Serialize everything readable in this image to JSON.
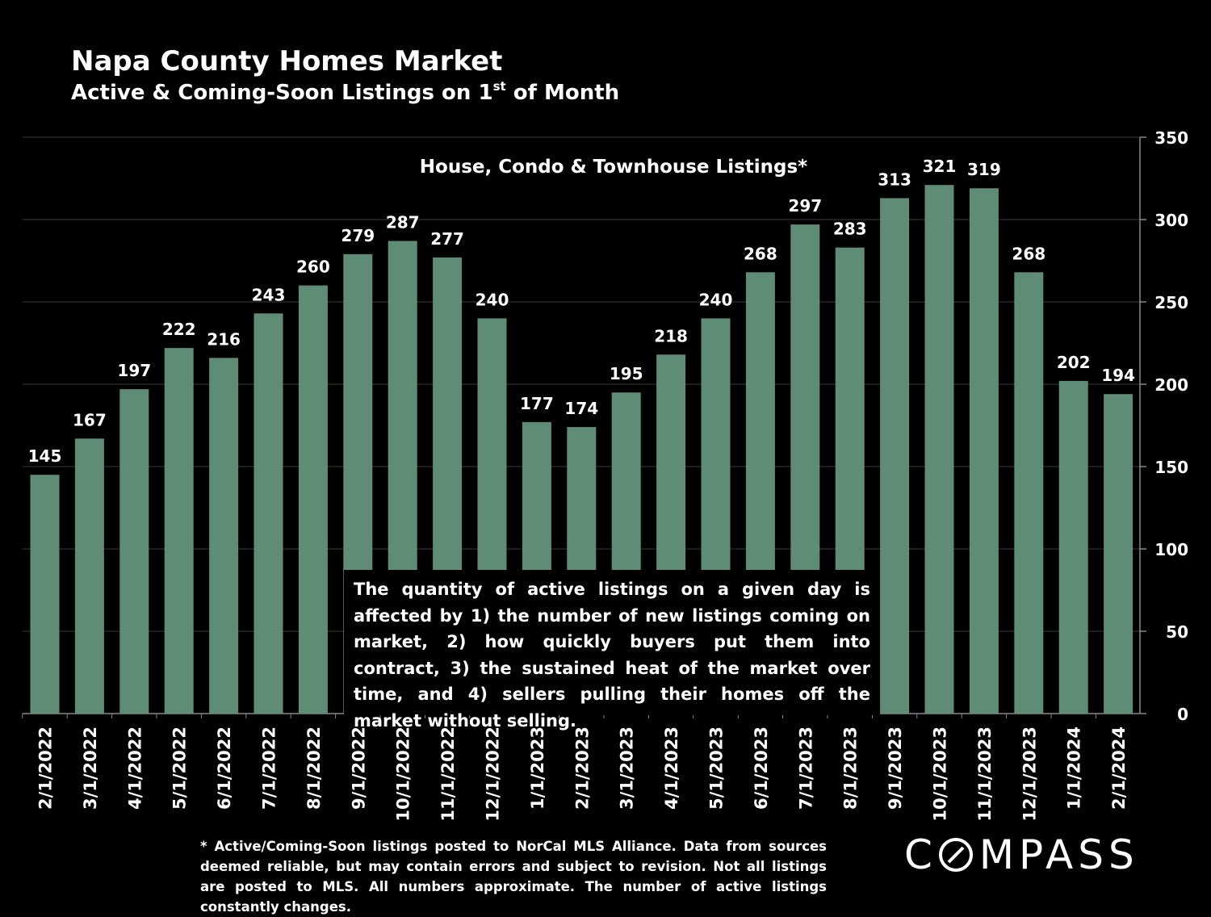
{
  "header": {
    "title": "Napa County Homes Market",
    "subtitle_pre": "Active & Coming-Soon Listings on 1",
    "subtitle_sup": "st",
    "subtitle_post": " of Month"
  },
  "chart_data": {
    "type": "bar",
    "title": "House, Condo & Townhouse Listings*",
    "categories": [
      "2/1/2022",
      "3/1/2022",
      "4/1/2022",
      "5/1/2022",
      "6/1/2022",
      "7/1/2022",
      "8/1/2022",
      "9/1/2022",
      "10/1/2022",
      "11/1/2022",
      "12/1/2022",
      "1/1/2023",
      "2/1/2023",
      "3/1/2023",
      "4/1/2023",
      "5/1/2023",
      "6/1/2023",
      "7/1/2023",
      "8/1/2023",
      "9/1/2023",
      "10/1/2023",
      "11/1/2023",
      "12/1/2023",
      "1/1/2024",
      "2/1/2024"
    ],
    "values": [
      145,
      167,
      197,
      222,
      216,
      243,
      260,
      279,
      287,
      277,
      240,
      177,
      174,
      195,
      218,
      240,
      268,
      297,
      283,
      313,
      321,
      319,
      268,
      202,
      194
    ],
    "y_ticks": [
      0,
      50,
      100,
      150,
      200,
      250,
      300,
      350
    ],
    "ylim": [
      0,
      350
    ],
    "y_axis_position": "right",
    "grid": true,
    "bar_color": "#5e8c77",
    "xlabel": "",
    "ylabel": ""
  },
  "annotation": "The quantity of active listings on a given day is affected by 1) the number of new listings coming on market, 2) how quickly buyers put them into contract, 3) the sustained heat of the market over time, and 4) sellers pulling their homes off the market without selling.",
  "footnote": "* Active/Coming-Soon listings posted to NorCal MLS Alliance.  Data from sources deemed reliable, but may contain errors and subject to revision.  Not all listings are posted to MLS. All numbers approximate. The number of active listings constantly changes.",
  "brand": {
    "logo_pre": "C",
    "logo_post": "MPASS"
  }
}
